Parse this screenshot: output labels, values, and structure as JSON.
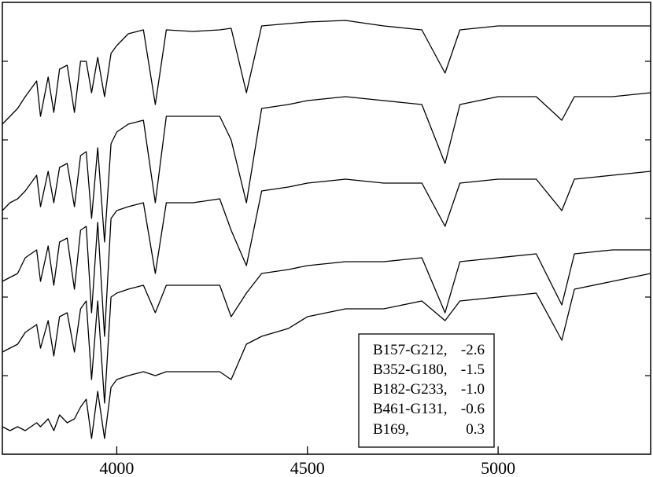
{
  "chart_data": {
    "type": "line",
    "title": "",
    "xlabel": "",
    "ylabel": "",
    "xlim": [
      3700,
      5400
    ],
    "xticks": [
      4000,
      4500,
      5000
    ],
    "xtick_labels": [
      "4000",
      "4500",
      "5000"
    ],
    "grid": false,
    "legend_position": "bottom-right",
    "legend": {
      "names": [
        "B157-G212,",
        "B352-G180,",
        "B182-G233,",
        "B461-G131,",
        "B169,"
      ],
      "values": [
        "-2.6",
        "-1.5",
        "-1.0",
        "-0.6",
        "0.3"
      ]
    },
    "line_color": "#000000",
    "series": [
      {
        "offset": 4.0,
        "x": [
          3700,
          3720,
          3740,
          3760,
          3790,
          3800,
          3820,
          3835,
          3850,
          3870,
          3889,
          3905,
          3920,
          3934,
          3950,
          3968,
          3985,
          4000,
          4030,
          4070,
          4101,
          4130,
          4200,
          4270,
          4300,
          4340,
          4380,
          4450,
          4500,
          4600,
          4700,
          4800,
          4861,
          4900,
          5000,
          5100,
          5200,
          5300,
          5400
        ],
        "y": [
          0.2,
          0.3,
          0.4,
          0.55,
          0.75,
          0.3,
          0.8,
          0.35,
          0.9,
          0.95,
          0.35,
          1.0,
          1.0,
          0.6,
          1.05,
          0.55,
          1.1,
          1.2,
          1.35,
          1.4,
          0.45,
          1.4,
          1.38,
          1.4,
          1.42,
          0.6,
          1.45,
          1.48,
          1.5,
          1.52,
          1.45,
          1.4,
          0.85,
          1.4,
          1.45,
          1.45,
          1.45,
          1.45,
          1.45
        ]
      },
      {
        "offset": 3.0,
        "x": [
          3700,
          3720,
          3740,
          3760,
          3790,
          3800,
          3820,
          3835,
          3850,
          3870,
          3889,
          3905,
          3920,
          3934,
          3950,
          3968,
          3985,
          4000,
          4030,
          4070,
          4101,
          4130,
          4200,
          4270,
          4300,
          4340,
          4380,
          4450,
          4500,
          4600,
          4700,
          4800,
          4861,
          4900,
          5000,
          5100,
          5167,
          5200,
          5300,
          5400
        ],
        "y": [
          0.1,
          0.2,
          0.25,
          0.35,
          0.55,
          0.15,
          0.6,
          0.2,
          0.65,
          0.7,
          0.15,
          0.8,
          0.85,
          0.0,
          0.9,
          -0.3,
          0.95,
          1.1,
          1.2,
          1.25,
          0.2,
          1.3,
          1.3,
          1.3,
          1.0,
          0.2,
          1.4,
          1.45,
          1.5,
          1.55,
          1.5,
          1.45,
          0.7,
          1.45,
          1.55,
          1.55,
          1.25,
          1.55,
          1.55,
          1.6
        ]
      },
      {
        "offset": 2.0,
        "x": [
          3700,
          3720,
          3740,
          3760,
          3790,
          3800,
          3820,
          3835,
          3850,
          3870,
          3889,
          3905,
          3920,
          3934,
          3950,
          3968,
          3985,
          4000,
          4030,
          4070,
          4101,
          4130,
          4200,
          4270,
          4300,
          4340,
          4380,
          4450,
          4500,
          4600,
          4700,
          4800,
          4861,
          4900,
          5000,
          5100,
          5167,
          5200,
          5300,
          5400
        ],
        "y": [
          0.2,
          0.25,
          0.3,
          0.5,
          0.6,
          0.2,
          0.65,
          0.15,
          0.7,
          0.75,
          0.1,
          0.85,
          0.9,
          -0.2,
          0.95,
          -0.5,
          1.0,
          1.1,
          1.15,
          1.2,
          0.3,
          1.2,
          1.2,
          1.25,
          0.85,
          0.4,
          1.35,
          1.4,
          1.45,
          1.5,
          1.45,
          1.45,
          0.9,
          1.45,
          1.5,
          1.5,
          1.1,
          1.5,
          1.55,
          1.6
        ]
      },
      {
        "offset": 1.0,
        "x": [
          3700,
          3720,
          3740,
          3760,
          3790,
          3800,
          3820,
          3835,
          3850,
          3870,
          3889,
          3905,
          3920,
          3934,
          3950,
          3968,
          3985,
          4000,
          4030,
          4070,
          4101,
          4130,
          4200,
          4270,
          4300,
          4340,
          4380,
          4450,
          4500,
          4600,
          4700,
          4800,
          4861,
          4900,
          5000,
          5100,
          5167,
          5200,
          5300,
          5400
        ],
        "y": [
          0.3,
          0.35,
          0.4,
          0.55,
          0.65,
          0.35,
          0.7,
          0.25,
          0.75,
          0.8,
          0.3,
          0.85,
          0.95,
          -0.05,
          0.95,
          -0.35,
          1.0,
          1.05,
          1.1,
          1.15,
          0.8,
          1.15,
          1.15,
          1.15,
          0.75,
          1.05,
          1.3,
          1.35,
          1.4,
          1.45,
          1.45,
          1.5,
          0.8,
          1.45,
          1.5,
          1.55,
          0.9,
          1.55,
          1.6,
          1.6
        ]
      },
      {
        "offset": 0.0,
        "x": [
          3700,
          3720,
          3740,
          3760,
          3790,
          3800,
          3820,
          3835,
          3850,
          3870,
          3889,
          3905,
          3920,
          3934,
          3950,
          3968,
          3985,
          4000,
          4030,
          4070,
          4101,
          4130,
          4200,
          4270,
          4300,
          4340,
          4380,
          4450,
          4500,
          4600,
          4700,
          4800,
          4861,
          4900,
          5000,
          5100,
          5167,
          5200,
          5300,
          5400
        ],
        "y": [
          0.35,
          0.3,
          0.35,
          0.3,
          0.4,
          0.35,
          0.45,
          0.3,
          0.5,
          0.4,
          0.45,
          0.6,
          0.7,
          0.2,
          0.8,
          0.2,
          0.85,
          0.95,
          1.0,
          1.05,
          1.0,
          1.05,
          1.05,
          1.05,
          0.95,
          1.4,
          1.5,
          1.6,
          1.75,
          1.85,
          1.85,
          1.95,
          1.7,
          1.95,
          2.0,
          2.05,
          1.45,
          2.1,
          2.2,
          2.3
        ]
      }
    ]
  }
}
